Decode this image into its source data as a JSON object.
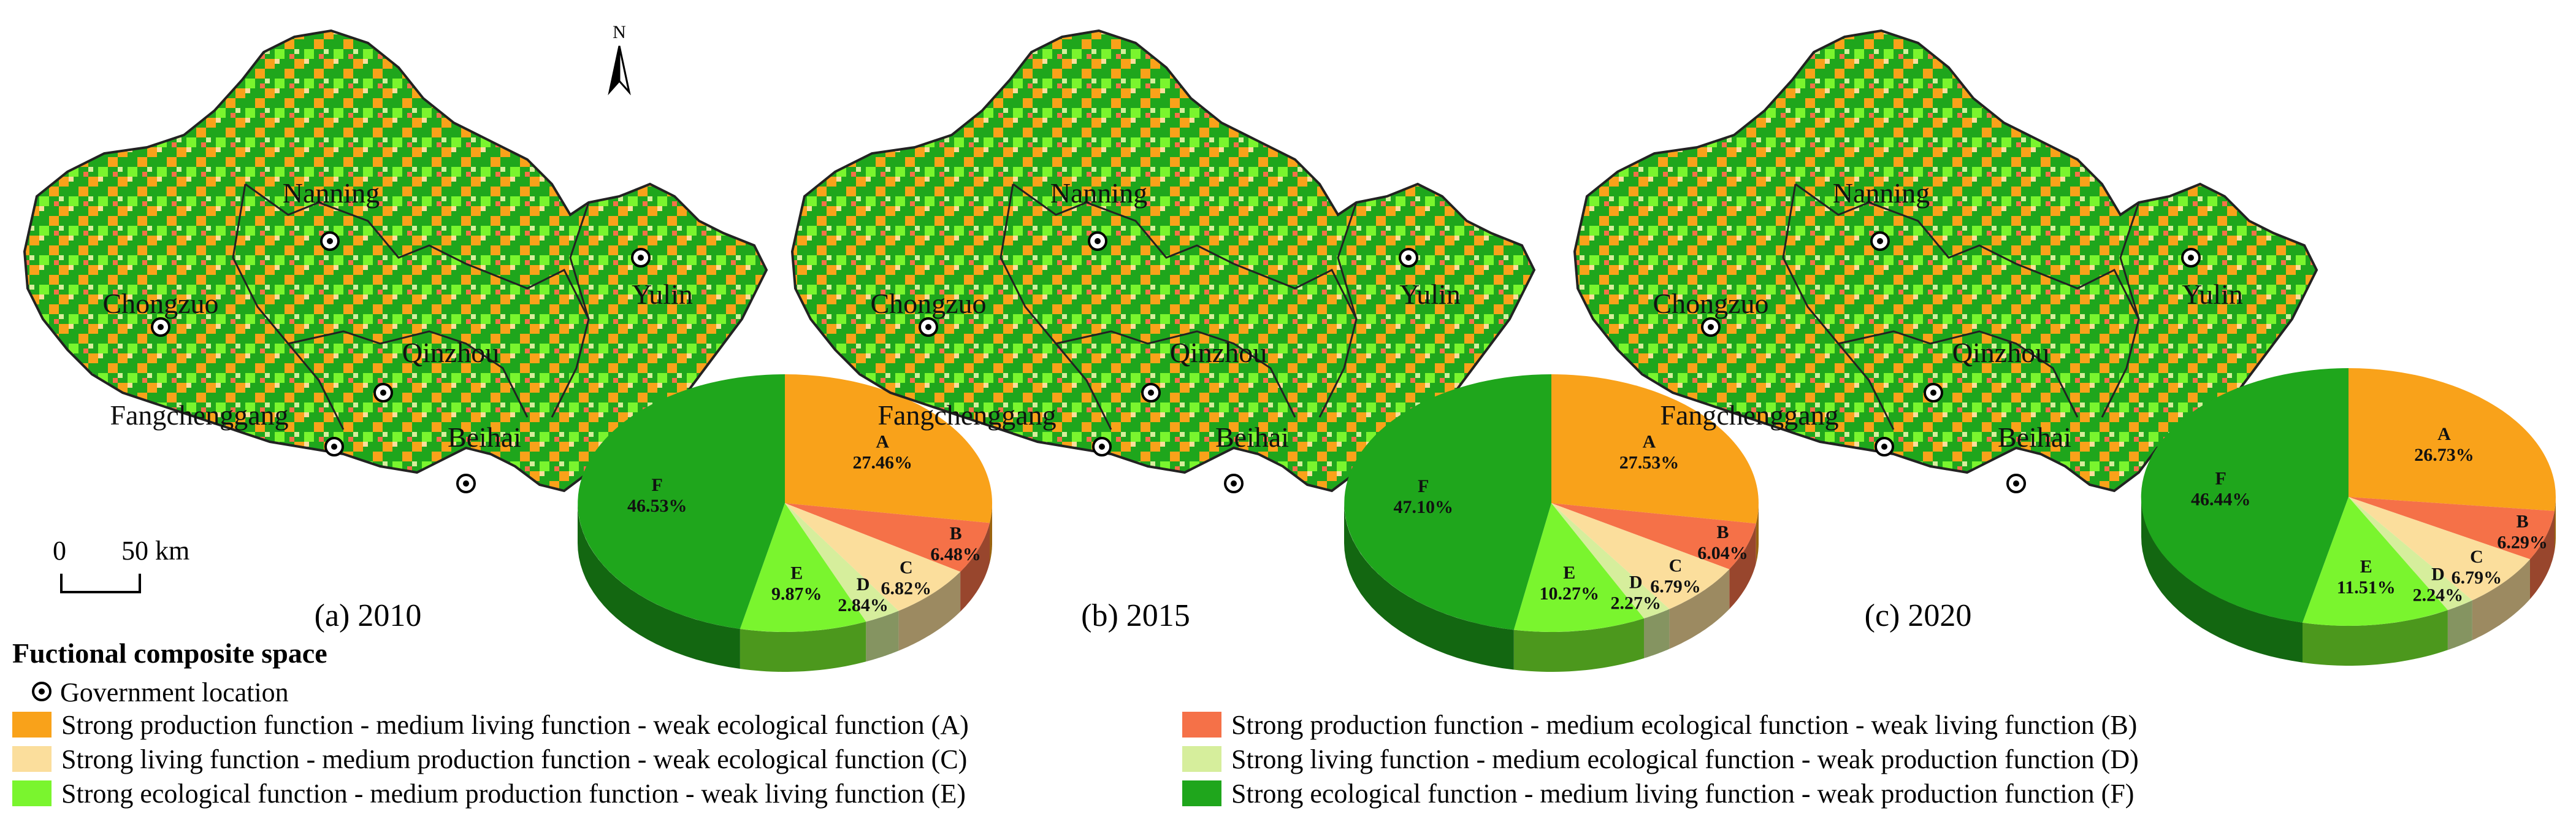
{
  "colors": {
    "A": "#F9A21A",
    "B": "#F57148",
    "C": "#FBDE9C",
    "D": "#D6EE9C",
    "E": "#7AF52E",
    "F": "#1FA61C",
    "boundary": "#222222"
  },
  "north_label": "N",
  "scale": {
    "zero": "0",
    "dist": "50 km"
  },
  "cities": [
    "Nanning",
    "Chongzuo",
    "Yulin",
    "Qinzhou",
    "Fangchenggang",
    "Beihai"
  ],
  "panels": [
    {
      "caption": "(a) 2010",
      "pie": [
        {
          "cls": "A",
          "pct": "27.46%"
        },
        {
          "cls": "B",
          "pct": "6.48%"
        },
        {
          "cls": "C",
          "pct": "6.82%"
        },
        {
          "cls": "D",
          "pct": "2.84%"
        },
        {
          "cls": "E",
          "pct": "9.87%"
        },
        {
          "cls": "F",
          "pct": "46.53%"
        }
      ]
    },
    {
      "caption": "(b) 2015",
      "pie": [
        {
          "cls": "A",
          "pct": "27.53%"
        },
        {
          "cls": "B",
          "pct": "6.04%"
        },
        {
          "cls": "C",
          "pct": "6.79%"
        },
        {
          "cls": "D",
          "pct": "2.27%"
        },
        {
          "cls": "E",
          "pct": "10.27%"
        },
        {
          "cls": "F",
          "pct": "47.10%"
        }
      ]
    },
    {
      "caption": "(c) 2020",
      "pie": [
        {
          "cls": "A",
          "pct": "26.73%"
        },
        {
          "cls": "B",
          "pct": "6.29%"
        },
        {
          "cls": "C",
          "pct": "6.79%"
        },
        {
          "cls": "D",
          "pct": "2.24%"
        },
        {
          "cls": "E",
          "pct": "11.51%"
        },
        {
          "cls": "F",
          "pct": "46.44%"
        }
      ]
    }
  ],
  "legend": {
    "title": "Fuctional composite space",
    "gov": "Government location",
    "items": [
      {
        "key": "A",
        "label": "Strong production function - medium living function - weak ecological function (A)"
      },
      {
        "key": "B",
        "label": "Strong production function - medium ecological function - weak living function (B)"
      },
      {
        "key": "C",
        "label": "Strong living function - medium production function - weak ecological function (C)"
      },
      {
        "key": "D",
        "label": "Strong living function - medium ecological function - weak production function (D)"
      },
      {
        "key": "E",
        "label": "Strong ecological function - medium production function - weak living function (E)"
      },
      {
        "key": "F",
        "label": "Strong ecological function - medium living function - weak production function (F)"
      }
    ]
  }
}
